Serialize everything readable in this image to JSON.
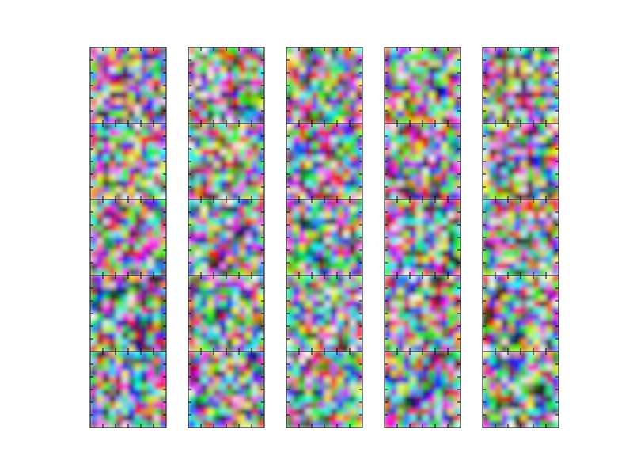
{
  "chart_data": {
    "type": "image"
  }
}
